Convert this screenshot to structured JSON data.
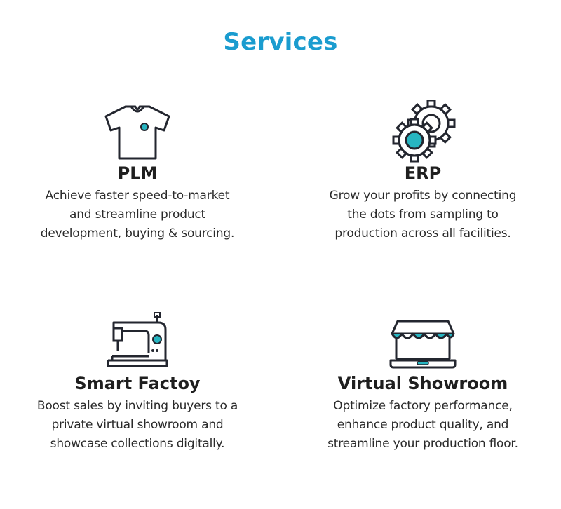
{
  "header": {
    "title": "Services",
    "title_color": "#1a9ccf"
  },
  "colors": {
    "icon_stroke": "#23262f",
    "icon_accent": "#27b5c1"
  },
  "services": [
    {
      "icon": "tshirt-icon",
      "title": "PLM",
      "description_lines": [
        "Achieve faster speed-to-market",
        "and streamline product",
        "development, buying & sourcing."
      ]
    },
    {
      "icon": "gears-icon",
      "title": "ERP",
      "description_lines": [
        "Grow your profits by connecting",
        "the dots from sampling to",
        "production across all facilities."
      ]
    },
    {
      "icon": "sewing-machine-icon",
      "title": "Smart Factoy",
      "description_lines": [
        "Boost sales by inviting buyers to a",
        "private virtual showroom and",
        "showcase collections digitally."
      ]
    },
    {
      "icon": "storefront-laptop-icon",
      "title": "Virtual Showroom",
      "description_lines": [
        "Optimize factory performance,",
        "enhance product quality, and",
        "streamline your production floor."
      ]
    }
  ]
}
